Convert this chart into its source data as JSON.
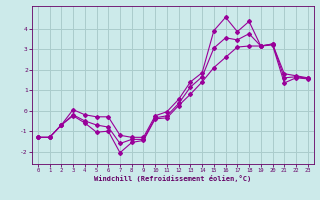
{
  "line1_x": [
    0,
    1,
    2,
    3,
    4,
    5,
    6,
    7,
    8,
    9,
    10,
    11,
    12,
    13,
    14,
    15,
    16,
    17,
    18,
    19,
    20,
    21,
    22,
    23
  ],
  "line1_y": [
    -1.3,
    -1.3,
    -0.7,
    -0.25,
    -0.6,
    -1.05,
    -1.0,
    -2.05,
    -1.55,
    -1.45,
    -0.4,
    -0.35,
    0.25,
    0.8,
    1.4,
    2.1,
    2.6,
    3.1,
    3.15,
    3.15,
    3.2,
    1.35,
    1.6,
    1.55
  ],
  "line2_x": [
    0,
    1,
    2,
    3,
    4,
    5,
    6,
    7,
    8,
    9,
    10,
    11,
    12,
    13,
    14,
    15,
    16,
    17,
    18,
    19,
    20,
    21,
    22,
    23
  ],
  "line2_y": [
    -1.3,
    -1.3,
    -0.7,
    0.05,
    -0.2,
    -0.3,
    -0.3,
    -1.2,
    -1.3,
    -1.3,
    -0.25,
    -0.05,
    0.55,
    1.4,
    1.85,
    3.9,
    4.55,
    3.85,
    4.35,
    3.15,
    3.25,
    1.8,
    1.7,
    1.6
  ],
  "line3_x": [
    0,
    1,
    2,
    3,
    4,
    5,
    6,
    7,
    8,
    9,
    10,
    11,
    12,
    13,
    14,
    15,
    16,
    17,
    18,
    19,
    20,
    21,
    22,
    23
  ],
  "line3_y": [
    -1.3,
    -1.3,
    -0.7,
    -0.2,
    -0.5,
    -0.7,
    -0.8,
    -1.6,
    -1.4,
    -1.4,
    -0.35,
    -0.25,
    0.35,
    1.15,
    1.65,
    3.05,
    3.55,
    3.45,
    3.75,
    3.15,
    3.25,
    1.6,
    1.65,
    1.58
  ],
  "line_color": "#990099",
  "bg_color": "#cceaea",
  "grid_color": "#aacccc",
  "xlabel": "Windchill (Refroidissement éolien,°C)",
  "xlabel_color": "#660066",
  "tick_color": "#660066",
  "ylim": [
    -2.6,
    5.1
  ],
  "xlim": [
    -0.5,
    23.5
  ],
  "yticks": [
    -2,
    -1,
    0,
    1,
    2,
    3,
    4
  ],
  "xticks": [
    0,
    1,
    2,
    3,
    4,
    5,
    6,
    7,
    8,
    9,
    10,
    11,
    12,
    13,
    14,
    15,
    16,
    17,
    18,
    19,
    20,
    21,
    22,
    23
  ]
}
